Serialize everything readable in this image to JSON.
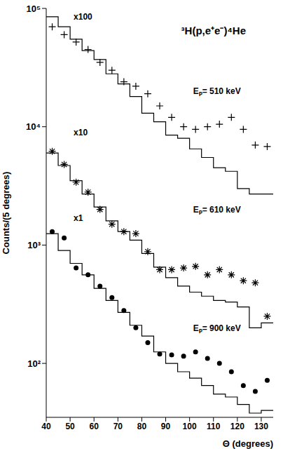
{
  "chart_data": {
    "type": "scatter",
    "title": "³H(p,e⁺e⁻)⁴He",
    "x_label": "Θ (degrees)",
    "y_label": "Counts/(5 degrees)",
    "log": "y",
    "grid": false,
    "xlim": [
      40,
      135
    ],
    "xticks": [
      40,
      50,
      60,
      70,
      80,
      90,
      100,
      110,
      120,
      130
    ],
    "ylim": [
      35,
      100000
    ],
    "yticks": [
      {
        "value": 100,
        "label": "10²"
      },
      {
        "value": 1000,
        "label": "10³"
      },
      {
        "value": 10000,
        "label": "10⁴"
      },
      {
        "value": 100000,
        "label": "10⁵"
      }
    ],
    "x": [
      42.5,
      47.5,
      52.5,
      57.5,
      62.5,
      67.5,
      72.5,
      77.5,
      82.5,
      87.5,
      92.5,
      97.5,
      102.5,
      107.5,
      112.5,
      117.5,
      122.5,
      127.5,
      132.5
    ],
    "annotations": [
      "x100",
      "x10",
      "x1"
    ],
    "series": [
      {
        "name": "Eₚ= 510 keV",
        "color": "#000000",
        "marker": "plus",
        "values": [
          70000,
          60000,
          52000,
          45000,
          35000,
          30000,
          24000,
          22000,
          19000,
          15000,
          12000,
          10000,
          9500,
          10000,
          10500,
          12000,
          9500,
          7000,
          6800
        ],
        "histogram": {
          "bins": [
            40,
            45,
            50,
            55,
            60,
            65,
            70,
            75,
            80,
            85,
            90,
            95,
            100,
            105,
            110,
            115,
            120,
            125,
            130,
            135
          ],
          "counts": [
            85000,
            70000,
            55000,
            44000,
            37000,
            28000,
            23000,
            18000,
            13000,
            11000,
            8500,
            8000,
            6500,
            5500,
            4500,
            4200,
            3000,
            2700,
            2700
          ]
        }
      },
      {
        "name": "Eₚ= 610 keV",
        "color": "#000000",
        "marker": "star",
        "values": [
          6200,
          4800,
          3400,
          2800,
          2000,
          1500,
          1300,
          1250,
          880,
          620,
          620,
          640,
          660,
          560,
          620,
          560,
          500,
          480,
          250
        ],
        "histogram": {
          "bins": [
            40,
            45,
            50,
            55,
            60,
            65,
            70,
            75,
            80,
            85,
            90,
            95,
            100,
            105,
            110,
            115,
            120,
            125,
            130,
            135
          ],
          "counts": [
            6000,
            4700,
            3500,
            2700,
            2100,
            1600,
            1300,
            1100,
            850,
            650,
            530,
            450,
            400,
            370,
            340,
            330,
            300,
            200,
            220
          ]
        }
      },
      {
        "name": "Eₚ= 900 keV",
        "color": "#000000",
        "marker": "circle",
        "values": [
          1300,
          1150,
          640,
          560,
          450,
          360,
          280,
          200,
          150,
          120,
          118,
          115,
          125,
          110,
          100,
          85,
          65,
          58,
          72
        ],
        "histogram": {
          "bins": [
            40,
            45,
            50,
            55,
            60,
            65,
            70,
            75,
            80,
            85,
            90,
            95,
            100,
            105,
            110,
            115,
            120,
            125,
            130,
            135
          ],
          "counts": [
            1250,
            900,
            700,
            560,
            430,
            340,
            270,
            210,
            170,
            125,
            100,
            85,
            75,
            65,
            55,
            52,
            45,
            38,
            40
          ]
        }
      }
    ]
  }
}
